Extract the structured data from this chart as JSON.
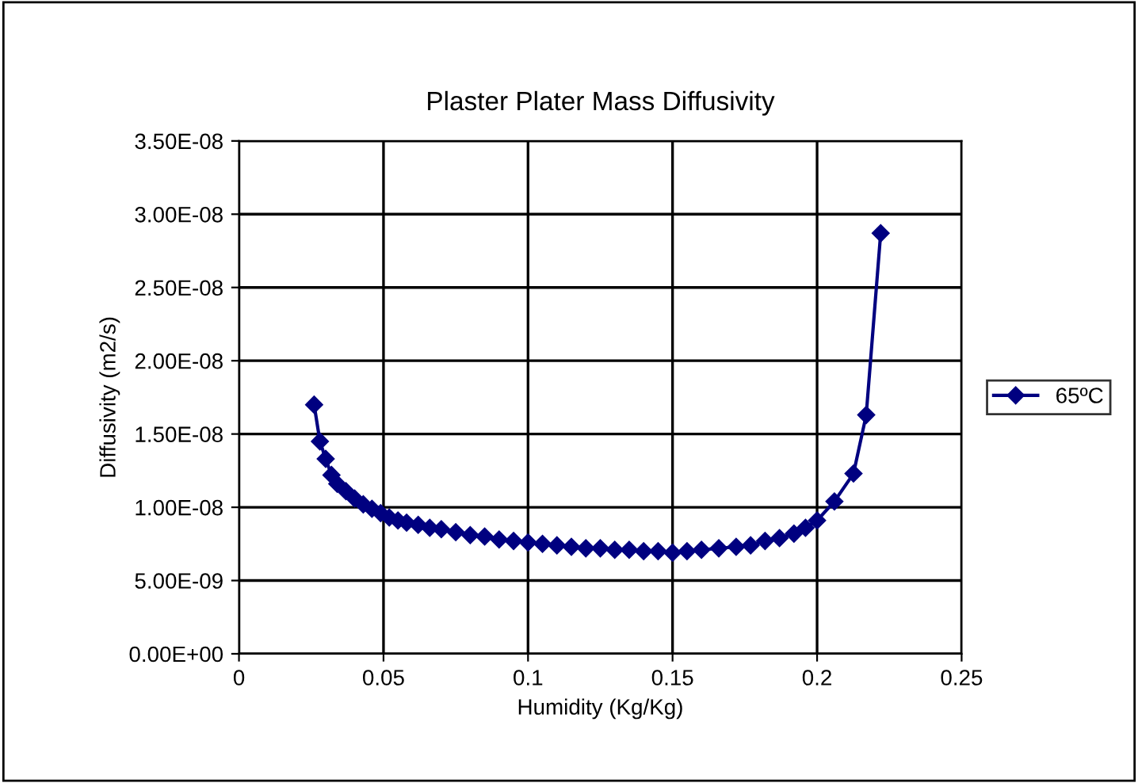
{
  "chart_data": {
    "type": "line",
    "title": "Plaster Plater Mass Diffusivity",
    "xlabel": "Humidity (Kg/Kg)",
    "ylabel": "Diffusivity (m2/s)",
    "x": [
      0.026,
      0.028,
      0.03,
      0.032,
      0.034,
      0.037,
      0.04,
      0.043,
      0.046,
      0.049,
      0.052,
      0.055,
      0.058,
      0.062,
      0.066,
      0.07,
      0.075,
      0.08,
      0.085,
      0.09,
      0.095,
      0.1,
      0.105,
      0.11,
      0.115,
      0.12,
      0.125,
      0.13,
      0.135,
      0.14,
      0.145,
      0.15,
      0.155,
      0.16,
      0.166,
      0.172,
      0.177,
      0.182,
      0.187,
      0.192,
      0.196,
      0.2,
      0.206,
      0.2126,
      0.217,
      0.222
    ],
    "series": [
      {
        "name": "65ºC",
        "color": "#000080",
        "values": [
          1.7e-08,
          1.45e-08,
          1.33e-08,
          1.22e-08,
          1.16e-08,
          1.11e-08,
          1.06e-08,
          1.02e-08,
          9.9e-09,
          9.6e-09,
          9.3e-09,
          9.1e-09,
          8.95e-09,
          8.8e-09,
          8.6e-09,
          8.5e-09,
          8.3e-09,
          8.1e-09,
          8e-09,
          7.8e-09,
          7.7e-09,
          7.6e-09,
          7.5e-09,
          7.4e-09,
          7.3e-09,
          7.2e-09,
          7.2e-09,
          7.1e-09,
          7.1e-09,
          7e-09,
          7e-09,
          6.9e-09,
          7e-09,
          7.1e-09,
          7.2e-09,
          7.3e-09,
          7.4e-09,
          7.7e-09,
          7.9e-09,
          8.2e-09,
          8.6e-09,
          9.1e-09,
          1.04e-08,
          1.23e-08,
          1.63e-08,
          2.87e-08
        ]
      }
    ],
    "xlim": [
      0,
      0.25
    ],
    "xticks": [
      0,
      0.05,
      0.1,
      0.15,
      0.2,
      0.25
    ],
    "ylim": [
      0,
      3.5e-08
    ],
    "yticks": [
      {
        "value": 0,
        "label": "0.00E+00"
      },
      {
        "value": 5e-09,
        "label": "5.00E-09"
      },
      {
        "value": 1e-08,
        "label": "1.00E-08"
      },
      {
        "value": 1.5e-08,
        "label": "1.50E-08"
      },
      {
        "value": 2e-08,
        "label": "2.00E-08"
      },
      {
        "value": 2.5e-08,
        "label": "2.50E-08"
      },
      {
        "value": 3e-08,
        "label": "3.00E-08"
      },
      {
        "value": 3.5e-08,
        "label": "3.50E-08"
      }
    ],
    "grid": true,
    "legend": "right",
    "marker": "diamond",
    "line_style": "solid"
  }
}
